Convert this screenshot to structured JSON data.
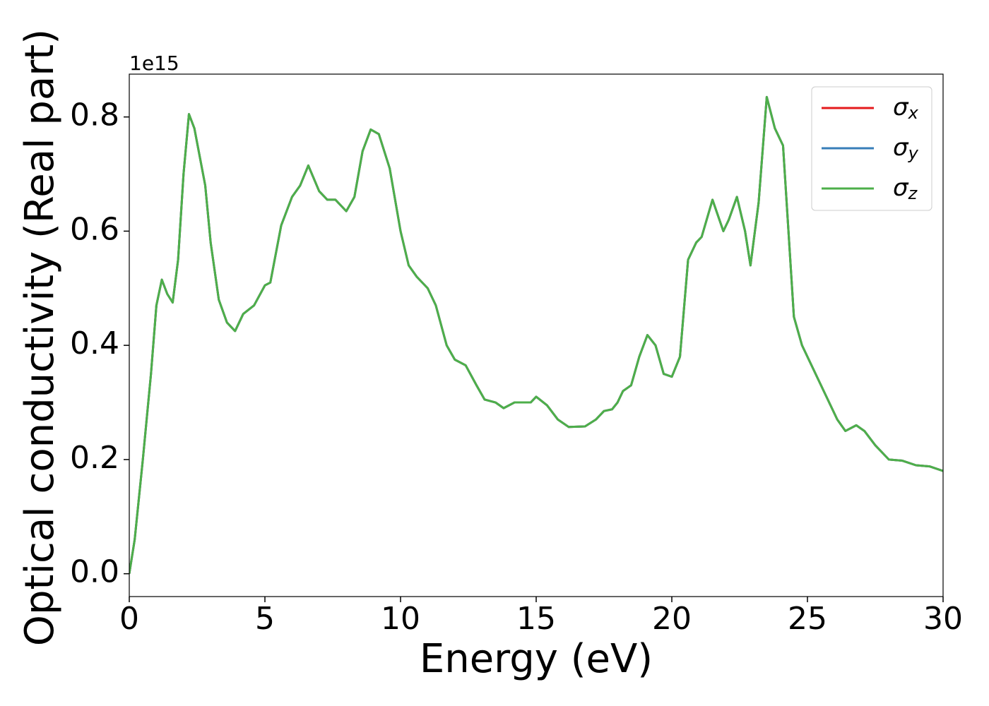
{
  "chart_data": {
    "type": "line",
    "xlabel": "Energy (eV)",
    "ylabel": "Optical conductivity (Real part)",
    "y_offset_label": "1e15",
    "x": [
      0,
      0.2,
      0.5,
      0.8,
      1.0,
      1.2,
      1.4,
      1.6,
      1.8,
      2.0,
      2.2,
      2.4,
      2.8,
      3.0,
      3.3,
      3.6,
      3.9,
      4.2,
      4.6,
      5.0,
      5.2,
      5.6,
      6.0,
      6.3,
      6.6,
      7.0,
      7.3,
      7.6,
      8.0,
      8.3,
      8.6,
      8.9,
      9.2,
      9.6,
      10.0,
      10.3,
      10.6,
      11.0,
      11.3,
      11.7,
      12.0,
      12.4,
      12.8,
      13.1,
      13.5,
      13.8,
      14.2,
      14.8,
      15.0,
      15.4,
      15.8,
      16.2,
      16.8,
      17.2,
      17.5,
      17.8,
      18.0,
      18.2,
      18.5,
      18.8,
      19.1,
      19.4,
      19.7,
      20.0,
      20.3,
      20.6,
      20.9,
      21.1,
      21.5,
      21.9,
      22.1,
      22.4,
      22.7,
      22.9,
      23.2,
      23.5,
      23.8,
      24.1,
      24.3,
      24.5,
      24.8,
      25.1,
      25.5,
      25.8,
      26.1,
      26.4,
      26.8,
      27.1,
      27.5,
      28.0,
      28.5,
      29.0,
      29.5,
      30.0
    ],
    "series": [
      {
        "name": "σx",
        "color": "#e41a1c",
        "values": [
          0,
          0.06,
          0.2,
          0.35,
          0.47,
          0.515,
          0.49,
          0.475,
          0.55,
          0.7,
          0.805,
          0.78,
          0.68,
          0.58,
          0.48,
          0.44,
          0.425,
          0.455,
          0.47,
          0.505,
          0.51,
          0.61,
          0.66,
          0.68,
          0.715,
          0.67,
          0.655,
          0.655,
          0.635,
          0.66,
          0.74,
          0.778,
          0.77,
          0.71,
          0.6,
          0.54,
          0.52,
          0.5,
          0.47,
          0.4,
          0.375,
          0.365,
          0.33,
          0.305,
          0.3,
          0.29,
          0.3,
          0.3,
          0.31,
          0.295,
          0.27,
          0.257,
          0.258,
          0.27,
          0.285,
          0.288,
          0.3,
          0.32,
          0.33,
          0.38,
          0.418,
          0.4,
          0.35,
          0.345,
          0.38,
          0.55,
          0.58,
          0.59,
          0.655,
          0.6,
          0.62,
          0.66,
          0.6,
          0.54,
          0.65,
          0.835,
          0.78,
          0.75,
          0.6,
          0.45,
          0.4,
          0.37,
          0.33,
          0.3,
          0.27,
          0.25,
          0.26,
          0.25,
          0.225,
          0.2,
          0.198,
          0.19,
          0.188,
          0.18
        ]
      },
      {
        "name": "σy",
        "color": "#377eb8",
        "values": [
          0,
          0.06,
          0.2,
          0.35,
          0.47,
          0.515,
          0.49,
          0.475,
          0.55,
          0.7,
          0.805,
          0.78,
          0.68,
          0.58,
          0.48,
          0.44,
          0.425,
          0.455,
          0.47,
          0.505,
          0.51,
          0.61,
          0.66,
          0.68,
          0.715,
          0.67,
          0.655,
          0.655,
          0.635,
          0.66,
          0.74,
          0.778,
          0.77,
          0.71,
          0.6,
          0.54,
          0.52,
          0.5,
          0.47,
          0.4,
          0.375,
          0.365,
          0.33,
          0.305,
          0.3,
          0.29,
          0.3,
          0.3,
          0.31,
          0.295,
          0.27,
          0.257,
          0.258,
          0.27,
          0.285,
          0.288,
          0.3,
          0.32,
          0.33,
          0.38,
          0.418,
          0.4,
          0.35,
          0.345,
          0.38,
          0.55,
          0.58,
          0.59,
          0.655,
          0.6,
          0.62,
          0.66,
          0.6,
          0.54,
          0.65,
          0.835,
          0.78,
          0.75,
          0.6,
          0.45,
          0.4,
          0.37,
          0.33,
          0.3,
          0.27,
          0.25,
          0.26,
          0.25,
          0.225,
          0.2,
          0.198,
          0.19,
          0.188,
          0.18
        ]
      },
      {
        "name": "σz",
        "color": "#4daf4a",
        "values": [
          0,
          0.06,
          0.2,
          0.35,
          0.47,
          0.515,
          0.49,
          0.475,
          0.55,
          0.7,
          0.805,
          0.78,
          0.68,
          0.58,
          0.48,
          0.44,
          0.425,
          0.455,
          0.47,
          0.505,
          0.51,
          0.61,
          0.66,
          0.68,
          0.715,
          0.67,
          0.655,
          0.655,
          0.635,
          0.66,
          0.74,
          0.778,
          0.77,
          0.71,
          0.6,
          0.54,
          0.52,
          0.5,
          0.47,
          0.4,
          0.375,
          0.365,
          0.33,
          0.305,
          0.3,
          0.29,
          0.3,
          0.3,
          0.31,
          0.295,
          0.27,
          0.257,
          0.258,
          0.27,
          0.285,
          0.288,
          0.3,
          0.32,
          0.33,
          0.38,
          0.418,
          0.4,
          0.35,
          0.345,
          0.38,
          0.55,
          0.58,
          0.59,
          0.655,
          0.6,
          0.62,
          0.66,
          0.6,
          0.54,
          0.65,
          0.835,
          0.78,
          0.75,
          0.6,
          0.45,
          0.4,
          0.37,
          0.33,
          0.3,
          0.27,
          0.25,
          0.26,
          0.25,
          0.225,
          0.2,
          0.198,
          0.19,
          0.188,
          0.18
        ]
      }
    ],
    "xlim": [
      0,
      30
    ],
    "xticks": [
      0,
      5,
      10,
      15,
      20,
      25,
      30
    ],
    "ylim": [
      -0.04,
      0.875
    ],
    "yticks": [
      {
        "value": 0,
        "label": "0.0"
      },
      0.2,
      0.4,
      0.6,
      0.8
    ],
    "grid": false,
    "legend": "upper right"
  }
}
